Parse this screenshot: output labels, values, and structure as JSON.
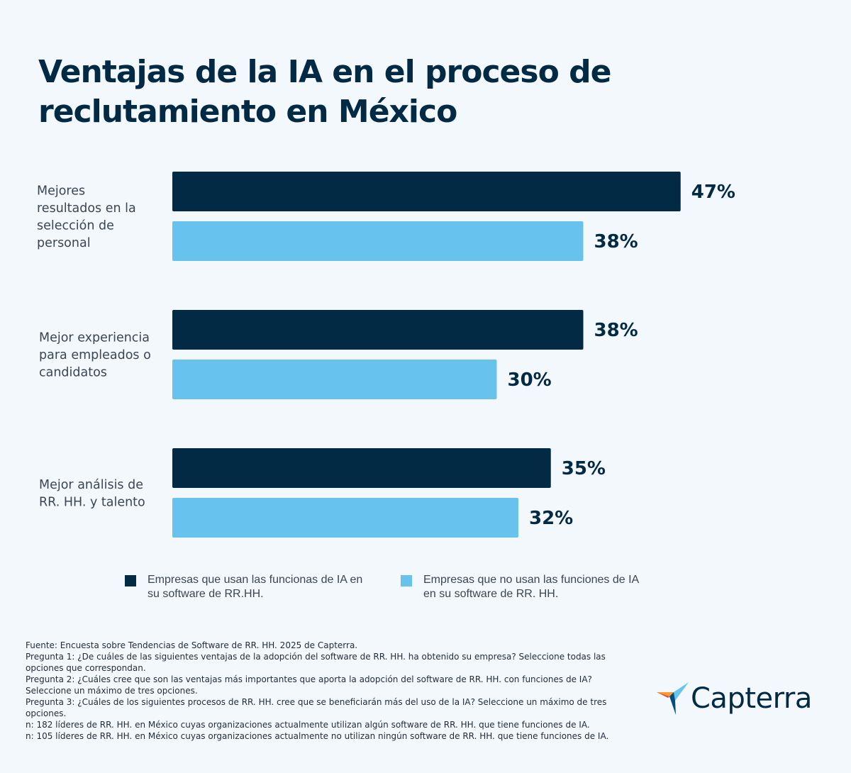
{
  "chart_data": {
    "type": "bar",
    "orientation": "horizontal",
    "title": "Ventajas de la IA en el proceso de reclutamiento en México",
    "categories": [
      [
        "Mejores",
        "resultados en la",
        "selección de",
        "personal"
      ],
      [
        "Mejor experiencia",
        "para empleados o",
        "candidatos"
      ],
      [
        "Mejor análisis de",
        "RR. HH. y talento"
      ]
    ],
    "series": [
      {
        "name": "Empresas que usan las funcionas de IA en su software de RR.HH.",
        "color": "#022a44",
        "values": [
          47,
          38,
          35
        ]
      },
      {
        "name": "Empresas que no usan las funciones de IA en su software de RR. HH.",
        "color": "#67c3ee",
        "values": [
          38,
          30,
          32
        ]
      }
    ],
    "value_suffix": "%",
    "xlim": [
      0,
      100
    ],
    "grid": false,
    "legend": "bottom"
  },
  "title_lines": [
    "Ventajas de la IA en el proceso de",
    "reclutamiento en México"
  ],
  "legend_items": [
    {
      "text": "Empresas que usan las funcionas de IA en su software de RR.HH.",
      "color": "#022a44"
    },
    {
      "text": "Empresas que no usan las funciones de IA en su software de RR. HH.",
      "color": "#67c3ee"
    }
  ],
  "footnotes": [
    "Fuente: Encuesta sobre Tendencias de Software de RR. HH. 2025 de Capterra.",
    "Pregunta 1: ¿De cuáles de las siguientes ventajas de la adopción del software de RR. HH. ha obtenido su empresa? Seleccione todas las opciones que correspondan.",
    "Pregunta 2: ¿Cuáles cree que son las ventajas más importantes que aporta la adopción del software de RR. HH. con funciones de IA? Seleccione un máximo de tres opciones.",
    "Pregunta 3: ¿Cuáles de los siguientes procesos de RR. HH. cree que se beneficiarán más del uso de la IA? Seleccione un máximo de tres opciones.",
    "n: 182 líderes de RR. HH. en México cuyas organizaciones actualmente utilizan algún software de RR. HH. que tiene funciones de IA.",
    "n: 105 líderes de RR. HH. en México cuyas organizaciones actualmente no utilizan ningún software de RR. HH. que tiene funciones de IA."
  ],
  "brand": {
    "name": "Capterra",
    "colors": {
      "orange": "#ff9d28",
      "blue": "#68c5ed",
      "navy": "#044d80",
      "red": "#e54747"
    }
  }
}
